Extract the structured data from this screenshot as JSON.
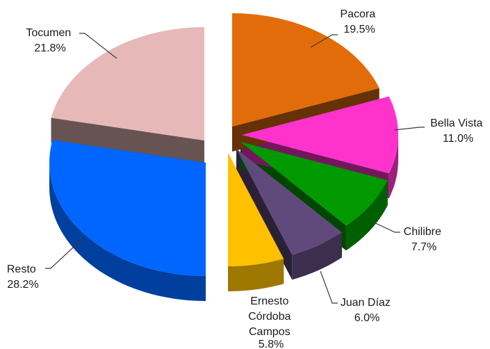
{
  "chart_data": {
    "type": "pie",
    "style": "3d-exploded",
    "title": "",
    "legend": "none",
    "slices": [
      {
        "label": "Pacora",
        "display": "19.5%",
        "value": 19.5,
        "color": "#E36C0A"
      },
      {
        "label": "Bella Vista",
        "display": "11.0%",
        "value": 11.0,
        "color": "#FF33CC"
      },
      {
        "label": "Chilibre",
        "display": "7.7%",
        "value": 7.7,
        "color": "#009900"
      },
      {
        "label": "Juan Díaz",
        "display": "6.0%",
        "value": 6.0,
        "color": "#604A7B"
      },
      {
        "label": "Ernesto Córdoba Campos",
        "display": "5.8%",
        "value": 5.8,
        "color": "#FFC000"
      },
      {
        "label": "Resto",
        "display": "28.2%",
        "value": 28.2,
        "color": "#0066FF"
      },
      {
        "label": "Tocumen",
        "display": "21.8%",
        "value": 21.8,
        "color": "#E6B9B8"
      }
    ]
  }
}
